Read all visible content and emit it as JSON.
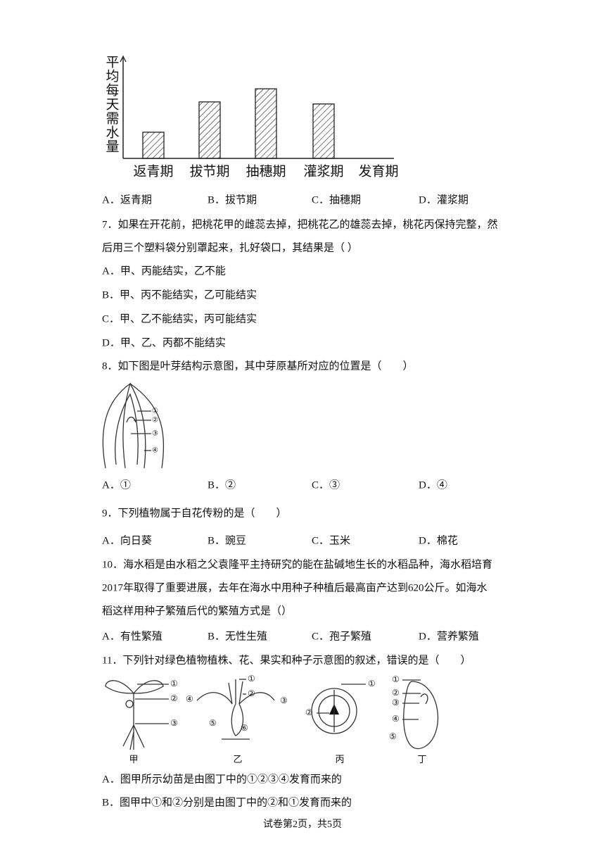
{
  "chart": {
    "type": "bar",
    "y_label": "平均每天需水量",
    "categories": [
      "返青期",
      "拔节期",
      "抽穗期",
      "灌浆期",
      "发育期"
    ],
    "values": [
      38,
      82,
      101,
      79,
      null
    ],
    "ylim": [
      0,
      140
    ]
  },
  "q6": {
    "options": [
      "A．返青期",
      "B．拔节期",
      "C．抽穗期",
      "D．灌浆期"
    ]
  },
  "q7": {
    "stem": [
      "7．如果在开花前，把桃花甲的雌蕊去掉，把桃花乙的雄蕊去掉，桃花丙保持完整，然",
      "后用三个塑料袋分别罩起来，扎好袋口，其结果是（ ）"
    ],
    "options": [
      "A．甲、丙能结实，乙不能",
      "B．甲、丙不能结实，乙可能结实",
      "C．甲、乙不能结实，丙可能结实",
      "D．甲、乙、丙都不能结实"
    ]
  },
  "q8": {
    "stem": [
      "8．如下图是叶芽结构示意图，其中芽原基所对应的位置是（　　）"
    ],
    "figure_labels": [
      "①",
      "②",
      "③",
      "④"
    ],
    "options": [
      "A．①",
      "B．②",
      "C．③",
      "D．④"
    ]
  },
  "q9": {
    "stem": [
      "9．下列植物属于自花传粉的是（　　）"
    ],
    "options": [
      "A．向日葵",
      "B．豌豆",
      "C．玉米",
      "D．棉花"
    ]
  },
  "q10": {
    "stem": [
      "10．海水稻是由水稻之父袁隆平主持研究的能在盐碱地生长的水稻品种，海水稻培育",
      "2017年取得了重要进展，去年在海水中用种子种植后最高亩产达到620公斤。如海水",
      "稻这样用种子繁殖后代的繁殖方式是（）"
    ],
    "options": [
      "A．有性繁殖",
      "B．无性生殖",
      "C．孢子繁殖",
      "D．营养繁殖"
    ]
  },
  "q11": {
    "stem": [
      "11．下列针对绿色植物植株、花、果实和种子示意图的叙述，错误的是（　　）"
    ],
    "figures": [
      {
        "caption": "甲",
        "labels": [
          "①",
          "②",
          "③"
        ]
      },
      {
        "caption": "乙",
        "labels": [
          "①",
          "②",
          "③",
          "④",
          "⑤",
          "⑥"
        ]
      },
      {
        "caption": "丙",
        "labels": [
          "①",
          "②"
        ]
      },
      {
        "caption": "丁",
        "labels": [
          "①",
          "②",
          "③",
          "④",
          "⑤"
        ]
      }
    ],
    "options": [
      "A．图甲所示幼苗是由图丁中的①②③④发育而来的",
      "B．图甲中①和②分别是由图丁中的②和①发育而来的"
    ]
  },
  "footer": "试卷第2页，共5页"
}
